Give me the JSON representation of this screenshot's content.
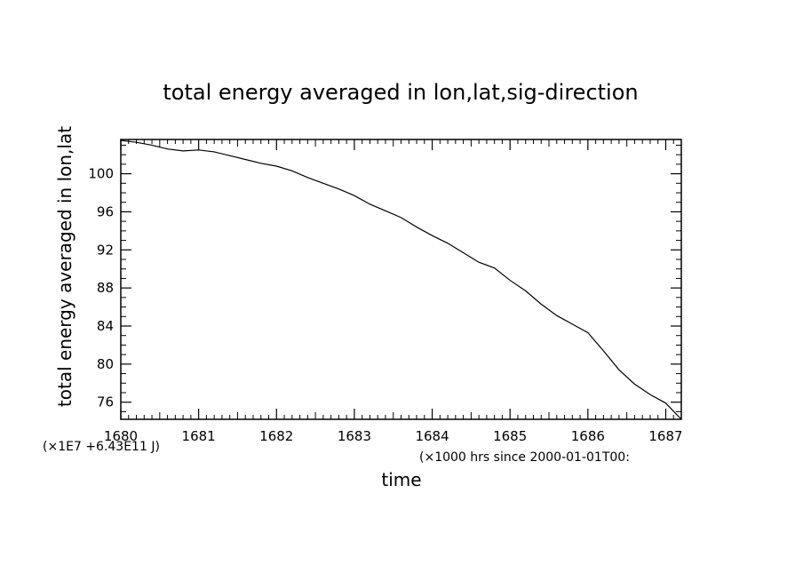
{
  "chart_data": {
    "type": "line",
    "title": "total energy averaged in lon,lat,sig-direction",
    "xlabel": "time",
    "ylabel": "total energy averaged in lon,lat",
    "x_note": "(×1000 hrs  since 2000-01-01T00:",
    "y_note": "(×1E7 +6.43E11 J)",
    "xlim": [
      1680,
      1687.2
    ],
    "ylim": [
      74.2,
      103.6
    ],
    "x_ticks": [
      1680,
      1681,
      1682,
      1683,
      1684,
      1685,
      1686,
      1687
    ],
    "x_tick_labels": [
      "1680",
      "1681",
      "1682",
      "1683",
      "1684",
      "1685",
      "1686",
      "1687"
    ],
    "y_ticks": [
      76,
      80,
      84,
      88,
      92,
      96,
      100
    ],
    "y_tick_labels": [
      "76",
      "80",
      "84",
      "88",
      "92",
      "96",
      "100"
    ],
    "grid": false,
    "series": [
      {
        "x": [
          1680.0,
          1680.2,
          1680.4,
          1680.6,
          1680.8,
          1681.0,
          1681.2,
          1681.4,
          1681.6,
          1681.8,
          1682.0,
          1682.2,
          1682.4,
          1682.6,
          1682.8,
          1683.0,
          1683.2,
          1683.4,
          1683.6,
          1683.8,
          1684.0,
          1684.2,
          1684.4,
          1684.6,
          1684.8,
          1685.0,
          1685.2,
          1685.4,
          1685.6,
          1685.8,
          1686.0,
          1686.2,
          1686.4,
          1686.6,
          1686.8,
          1687.0,
          1687.2
        ],
        "values": [
          103.5,
          103.3,
          103.0,
          102.6,
          102.4,
          102.5,
          102.3,
          101.9,
          101.5,
          101.1,
          100.8,
          100.3,
          99.6,
          99.0,
          98.4,
          97.7,
          96.8,
          96.1,
          95.4,
          94.4,
          93.5,
          92.7,
          91.7,
          90.7,
          90.1,
          88.8,
          87.7,
          86.3,
          85.1,
          84.2,
          83.3,
          81.4,
          79.4,
          77.9,
          76.8,
          75.9,
          74.2
        ]
      }
    ]
  }
}
